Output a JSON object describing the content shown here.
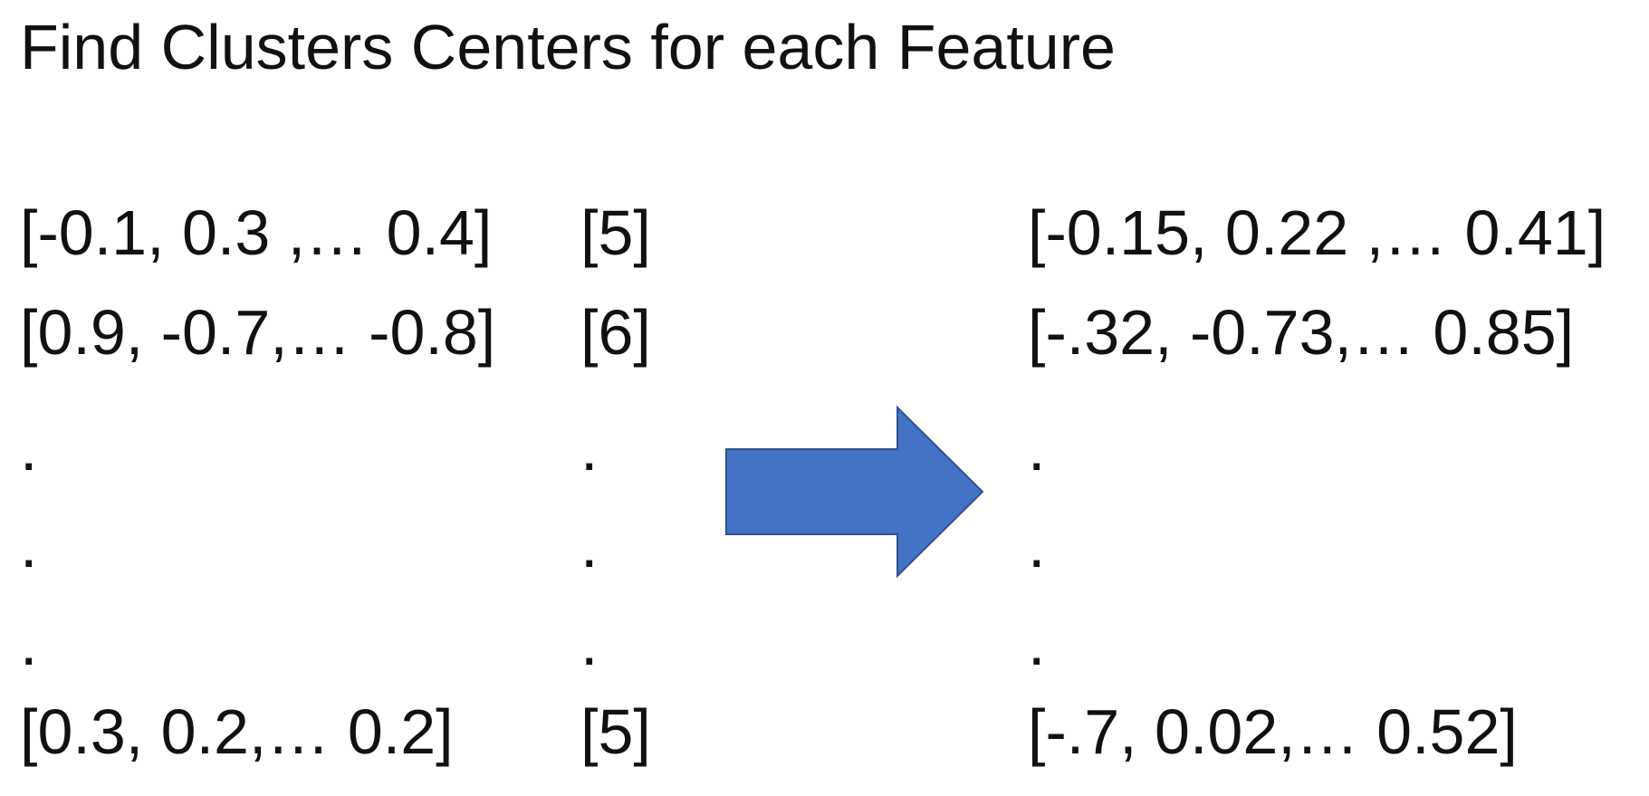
{
  "title": "Find Clusters Centers for each Feature",
  "features": {
    "rows": [
      "[-0.1, 0.3 ,… 0.4]",
      "[0.9, -0.7,… -0.8]",
      ".",
      ".",
      ".",
      "[0.3, 0.2,… 0.2]"
    ]
  },
  "labels": {
    "rows": [
      "[5]",
      "[6]",
      ".",
      ".",
      ".",
      "[5]"
    ]
  },
  "centers": {
    "rows": [
      "[-0.15, 0.22 ,… 0.41]",
      "[-.32, -0.73,… 0.85]",
      ".",
      ".",
      ".",
      "[-.7, 0.02,… 0.52]"
    ]
  },
  "arrow": {
    "icon": "right-arrow-icon",
    "fill": "#4472C4",
    "stroke": "#2F528F"
  }
}
